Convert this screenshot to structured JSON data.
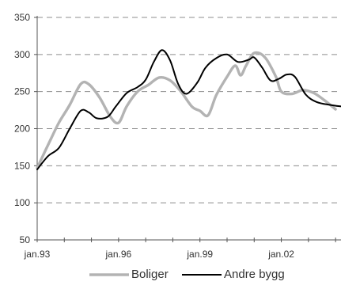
{
  "chart_data": {
    "type": "line",
    "title": "",
    "xlabel": "",
    "ylabel": "",
    "ylim": [
      50,
      350
    ],
    "yticks": [
      50,
      100,
      150,
      200,
      250,
      300,
      350
    ],
    "xlim": [
      1993,
      2004.2
    ],
    "xticks": [
      {
        "value": 1993,
        "label": "jan.93"
      },
      {
        "value": 1996,
        "label": "jan.96"
      },
      {
        "value": 1999,
        "label": "jan.99"
      },
      {
        "value": 2002,
        "label": "jan.02"
      }
    ],
    "x_minor_ticks": [
      1993,
      1994,
      1995,
      1996,
      1997,
      1998,
      1999,
      2000,
      2001,
      2002,
      2003,
      2004
    ],
    "grid": {
      "horizontal": true,
      "style": "dashed"
    },
    "legend_position": "bottom",
    "series": [
      {
        "name": "Boliger",
        "color": "#b3b3b3",
        "points": [
          [
            1993.0,
            147
          ],
          [
            1993.4,
            178
          ],
          [
            1993.8,
            208
          ],
          [
            1994.2,
            232
          ],
          [
            1994.6,
            260
          ],
          [
            1994.9,
            260
          ],
          [
            1995.3,
            242
          ],
          [
            1995.7,
            216
          ],
          [
            1996.0,
            208
          ],
          [
            1996.3,
            230
          ],
          [
            1996.7,
            250
          ],
          [
            1997.1,
            259
          ],
          [
            1997.5,
            269
          ],
          [
            1997.9,
            265
          ],
          [
            1998.3,
            250
          ],
          [
            1998.7,
            230
          ],
          [
            1999.0,
            224
          ],
          [
            1999.3,
            218
          ],
          [
            1999.6,
            245
          ],
          [
            2000.0,
            270
          ],
          [
            2000.3,
            285
          ],
          [
            2000.5,
            272
          ],
          [
            2000.7,
            285
          ],
          [
            2001.0,
            302
          ],
          [
            2001.4,
            296
          ],
          [
            2001.8,
            270
          ],
          [
            2002.0,
            250
          ],
          [
            2002.4,
            247
          ],
          [
            2002.8,
            252
          ],
          [
            2003.2,
            248
          ],
          [
            2003.6,
            238
          ],
          [
            2004.0,
            226
          ]
        ]
      },
      {
        "name": "Andre bygg",
        "color": "#000000",
        "points": [
          [
            1993.0,
            145
          ],
          [
            1993.4,
            163
          ],
          [
            1993.8,
            174
          ],
          [
            1994.2,
            200
          ],
          [
            1994.6,
            224
          ],
          [
            1994.9,
            222
          ],
          [
            1995.2,
            214
          ],
          [
            1995.6,
            216
          ],
          [
            1995.9,
            230
          ],
          [
            1996.3,
            248
          ],
          [
            1996.7,
            256
          ],
          [
            1997.0,
            266
          ],
          [
            1997.3,
            290
          ],
          [
            1997.6,
            306
          ],
          [
            1997.9,
            292
          ],
          [
            1998.2,
            260
          ],
          [
            1998.5,
            247
          ],
          [
            1998.9,
            262
          ],
          [
            1999.2,
            282
          ],
          [
            1999.6,
            295
          ],
          [
            2000.0,
            300
          ],
          [
            2000.4,
            290
          ],
          [
            2000.8,
            293
          ],
          [
            2001.0,
            296
          ],
          [
            2001.3,
            282
          ],
          [
            2001.6,
            265
          ],
          [
            2001.9,
            267
          ],
          [
            2002.2,
            273
          ],
          [
            2002.5,
            270
          ],
          [
            2002.9,
            246
          ],
          [
            2003.3,
            236
          ],
          [
            2003.8,
            232
          ],
          [
            2004.2,
            230
          ]
        ]
      }
    ]
  }
}
